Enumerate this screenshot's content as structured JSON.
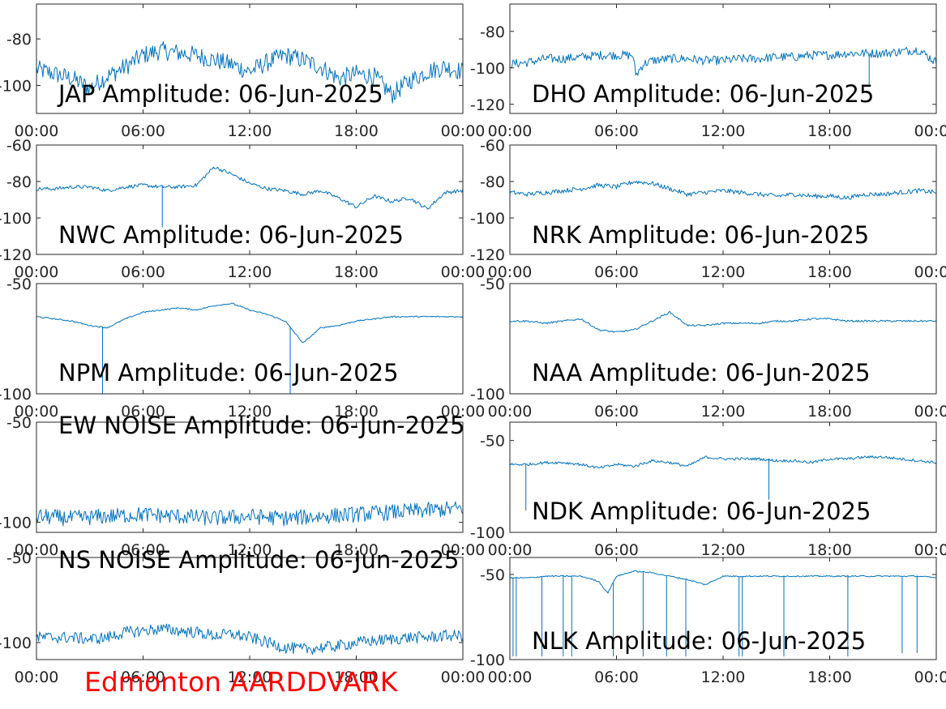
{
  "footer": "Edmonton AARDDVARK",
  "series_color": "#0072bd",
  "chart_data": [
    {
      "type": "line",
      "title": "JAP Amplitude: 06-Jun-2025",
      "xticks": [
        "00:00",
        "06:00",
        "12:00",
        "18:00",
        "00:00"
      ],
      "xlim": [
        0,
        24
      ],
      "ylim": [
        -112,
        -65
      ],
      "yticks": [
        {
          "v": -80,
          "t": "-80"
        },
        {
          "v": -100,
          "t": "-100"
        }
      ],
      "series": [
        {
          "x": [
            0,
            1,
            2,
            3,
            4,
            5,
            6,
            7,
            8,
            9,
            10,
            11,
            12,
            13,
            14,
            15,
            16,
            17,
            18,
            19,
            20,
            21,
            22,
            23,
            24
          ],
          "y": [
            -93,
            -95,
            -97,
            -101,
            -96,
            -92,
            -87,
            -85,
            -86,
            -87,
            -89,
            -91,
            -94,
            -90,
            -87,
            -89,
            -92,
            -97,
            -95,
            -96,
            -104,
            -98,
            -94,
            -92,
            -94
          ],
          "noise": 8
        }
      ]
    },
    {
      "type": "line",
      "title": "DHO Amplitude: 06-Jun-2025",
      "xticks": [
        "00:00",
        "06:00",
        "12:00",
        "18:00",
        "00:00"
      ],
      "xlim": [
        0,
        24
      ],
      "ylim": [
        -125,
        -65
      ],
      "yticks": [
        {
          "v": -80,
          "t": "-80"
        },
        {
          "v": -100,
          "t": "-100"
        },
        {
          "v": -120,
          "t": "-120"
        }
      ],
      "series": [
        {
          "x": [
            0,
            1,
            2,
            3,
            4,
            5,
            6,
            6.9,
            7.1,
            7.5,
            8,
            9,
            10,
            11,
            12,
            13,
            14,
            15,
            16,
            17,
            18,
            19,
            20,
            21,
            22,
            23,
            24
          ],
          "y": [
            -98,
            -97,
            -95,
            -95,
            -94,
            -93,
            -93,
            -93,
            -104,
            -98,
            -96,
            -95,
            -95,
            -96,
            -96,
            -95,
            -95,
            -94,
            -94,
            -93,
            -93,
            -92,
            -92,
            -92,
            -91,
            -90,
            -97
          ],
          "noise": 5
        }
      ]
    },
    {
      "type": "line",
      "title": "NWC Amplitude: 06-Jun-2025",
      "xticks": [
        "00:00",
        "06:00",
        "12:00",
        "18:00",
        "00:00"
      ],
      "xlim": [
        0,
        24
      ],
      "ylim": [
        -120,
        -60
      ],
      "yticks": [
        {
          "v": -60,
          "t": "-60"
        },
        {
          "v": -80,
          "t": "-80"
        },
        {
          "v": -100,
          "t": "-100"
        },
        {
          "v": -120,
          "t": "-120"
        }
      ],
      "series": [
        {
          "x": [
            0,
            1,
            2,
            3,
            4,
            5,
            6,
            7,
            8,
            9,
            10,
            11,
            12,
            13,
            14,
            15,
            16,
            17,
            18,
            19,
            20,
            21,
            22,
            23,
            24
          ],
          "y": [
            -84,
            -84,
            -83,
            -83,
            -85,
            -83,
            -82,
            -83,
            -83,
            -82,
            -72,
            -76,
            -81,
            -84,
            -85,
            -87,
            -85,
            -89,
            -94,
            -88,
            -91,
            -89,
            -95,
            -86,
            -85
          ],
          "noise": 2
        }
      ]
    },
    {
      "type": "line",
      "title": "NRK Amplitude: 06-Jun-2025",
      "xticks": [
        "00:00",
        "06:00",
        "12:00",
        "18:00",
        "00:00"
      ],
      "xlim": [
        0,
        24
      ],
      "ylim": [
        -120,
        -60
      ],
      "yticks": [
        {
          "v": -60,
          "t": "-60"
        },
        {
          "v": -80,
          "t": "-80"
        },
        {
          "v": -100,
          "t": "-100"
        },
        {
          "v": -120,
          "t": "-120"
        }
      ],
      "series": [
        {
          "x": [
            0,
            1,
            2,
            3,
            4,
            5,
            6,
            7,
            8,
            9,
            10,
            11,
            12,
            13,
            14,
            15,
            16,
            17,
            18,
            19,
            20,
            21,
            22,
            23,
            24
          ],
          "y": [
            -86,
            -87,
            -86,
            -85,
            -84,
            -82,
            -83,
            -80,
            -81,
            -84,
            -87,
            -86,
            -85,
            -86,
            -87,
            -88,
            -87,
            -88,
            -88,
            -89,
            -87,
            -87,
            -86,
            -85,
            -86
          ],
          "noise": 2.5
        }
      ]
    },
    {
      "type": "line",
      "title": "NPM Amplitude: 06-Jun-2025",
      "xticks": [
        "00:00",
        "06:00",
        "12:00",
        "18:00",
        "00:00"
      ],
      "xlim": [
        0,
        24
      ],
      "ylim": [
        -100,
        -50
      ],
      "yticks": [
        {
          "v": -50,
          "t": "-50"
        },
        {
          "v": -100,
          "t": "-100"
        }
      ],
      "series": [
        {
          "x": [
            0,
            1,
            2,
            3,
            4,
            5,
            6,
            7,
            8,
            9,
            10,
            11,
            12,
            13,
            14,
            15,
            16,
            17,
            18,
            19,
            20,
            21,
            22,
            23,
            24
          ],
          "y": [
            -65,
            -66,
            -67,
            -69,
            -70,
            -66,
            -63,
            -62,
            -61,
            -62,
            -60,
            -59,
            -62,
            -64,
            -67,
            -77,
            -70,
            -69,
            -67,
            -66,
            -65,
            -65,
            -65,
            -65,
            -65
          ],
          "noise": 0.6
        }
      ]
    },
    {
      "type": "line",
      "title": "NAA Amplitude: 06-Jun-2025",
      "xticks": [
        "00:00",
        "06:00",
        "12:00",
        "18:00",
        "00:00"
      ],
      "xlim": [
        0,
        24
      ],
      "ylim": [
        -100,
        -50
      ],
      "yticks": [
        {
          "v": -50,
          "t": "-50"
        },
        {
          "v": -100,
          "t": "-100"
        }
      ],
      "series": [
        {
          "x": [
            0,
            1,
            2,
            3,
            4,
            5,
            6,
            7,
            8,
            9,
            10,
            11,
            12,
            13,
            14,
            15,
            16,
            17,
            18,
            19,
            20,
            21,
            22,
            23,
            24
          ],
          "y": [
            -67,
            -67,
            -68,
            -67,
            -66,
            -71,
            -72,
            -71,
            -67,
            -63,
            -69,
            -69,
            -68,
            -68,
            -68,
            -67,
            -67,
            -66,
            -66,
            -67,
            -67,
            -67,
            -67,
            -67,
            -67
          ],
          "noise": 0.8
        }
      ]
    },
    {
      "type": "line",
      "title": "EW NOISE Amplitude: 06-Jun-2025",
      "xticks": [
        "00:00",
        "06:00",
        "12:00",
        "18:00",
        "00:00"
      ],
      "xlim": [
        0,
        24
      ],
      "ylim": [
        -105,
        -50
      ],
      "yticks": [
        {
          "v": -50,
          "t": "-50"
        },
        {
          "v": -100,
          "t": "-100"
        }
      ],
      "series": [
        {
          "x": [
            0,
            2,
            4,
            6,
            8,
            10,
            12,
            14,
            16,
            18,
            20,
            22,
            24
          ],
          "y": [
            -97,
            -98,
            -97,
            -96,
            -97,
            -98,
            -97,
            -98,
            -97,
            -96,
            -95,
            -94,
            -93
          ],
          "noise": 8
        }
      ]
    },
    {
      "type": "line",
      "title": "NDK Amplitude: 06-Jun-2025",
      "xticks": [
        "00:00",
        "06:00",
        "12:00",
        "18:00",
        "00:00"
      ],
      "xlim": [
        0,
        24
      ],
      "ylim": [
        -100,
        -40
      ],
      "yticks": [
        {
          "v": -50,
          "t": "-50"
        },
        {
          "v": -100,
          "t": "-100"
        }
      ],
      "series": [
        {
          "x": [
            0,
            1,
            2,
            3,
            4,
            5,
            6,
            7,
            8,
            9,
            10,
            11,
            12,
            13,
            14,
            15,
            16,
            17,
            18,
            19,
            20,
            21,
            22,
            23,
            24
          ],
          "y": [
            -63,
            -63,
            -62,
            -62,
            -63,
            -65,
            -63,
            -64,
            -61,
            -62,
            -64,
            -59,
            -60,
            -60,
            -60,
            -61,
            -61,
            -62,
            -60,
            -60,
            -59,
            -59,
            -60,
            -61,
            -62
          ],
          "noise": 1.5
        }
      ]
    },
    {
      "type": "line",
      "title": "NS NOISE Amplitude: 06-Jun-2025",
      "xticks": [
        "00:00",
        "06:00",
        "12:00",
        "18:00",
        "00:00"
      ],
      "xlim": [
        0,
        24
      ],
      "ylim": [
        -110,
        -50
      ],
      "yticks": [
        {
          "v": -50,
          "t": "-50"
        },
        {
          "v": -100,
          "t": "-100"
        }
      ],
      "series": [
        {
          "x": [
            0,
            2,
            3,
            4,
            5,
            6,
            7,
            8,
            9,
            10,
            11,
            12,
            13,
            14,
            15,
            16,
            17,
            18,
            19,
            20,
            21,
            22,
            23,
            24
          ],
          "y": [
            -97,
            -97,
            -98,
            -97,
            -94,
            -93,
            -92,
            -93,
            -94,
            -96,
            -95,
            -97,
            -100,
            -103,
            -104,
            -103,
            -102,
            -100,
            -99,
            -98,
            -97,
            -97,
            -96,
            -96
          ],
          "noise": 7
        }
      ]
    },
    {
      "type": "line",
      "title": "NLK Amplitude: 06-Jun-2025",
      "xticks": [
        "00:00",
        "06:00",
        "12:00",
        "18:00",
        "00:00"
      ],
      "xlim": [
        0,
        24
      ],
      "ylim": [
        -100,
        -40
      ],
      "yticks": [
        {
          "v": -50,
          "t": "-50"
        },
        {
          "v": -100,
          "t": "-100"
        }
      ],
      "series": [
        {
          "x": [
            0,
            1,
            2,
            3,
            4,
            5,
            5.5,
            6,
            7,
            8,
            9,
            10,
            11,
            12,
            13,
            14,
            15,
            16,
            17,
            18,
            19,
            20,
            21,
            22,
            23,
            24
          ],
          "y": [
            -52,
            -52,
            -51,
            -51,
            -51,
            -54,
            -61,
            -51,
            -48,
            -49,
            -51,
            -53,
            -56,
            -51,
            -51,
            -51,
            -51,
            -51,
            -51,
            -51,
            -51,
            -51,
            -51,
            -51,
            -51,
            -52
          ],
          "noise": 0.8
        }
      ]
    }
  ]
}
